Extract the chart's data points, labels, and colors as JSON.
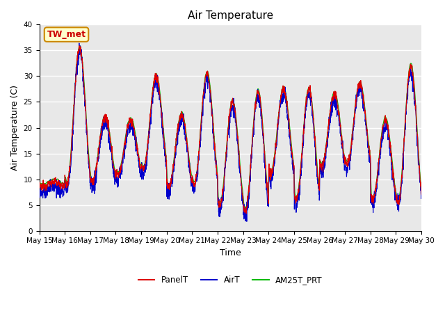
{
  "title": "Air Temperature",
  "xlabel": "Time",
  "ylabel": "Air Temperature (C)",
  "ylim": [
    0,
    40
  ],
  "yticks": [
    0,
    5,
    10,
    15,
    20,
    25,
    30,
    35,
    40
  ],
  "annotation_text": "TW_met",
  "annotation_color": "#cc0000",
  "annotation_bg": "#ffffcc",
  "annotation_border": "#cc8800",
  "bg_color": "#e8e8e8",
  "panel_color": "#dd0000",
  "air_color": "#0000cc",
  "am25t_color": "#00bb00",
  "linewidth": 0.8,
  "title_fontsize": 11,
  "axis_label_fontsize": 9,
  "tick_fontsize": 7.5,
  "legend_fontsize": 8.5,
  "figsize": [
    6.4,
    4.8
  ],
  "dpi": 100
}
